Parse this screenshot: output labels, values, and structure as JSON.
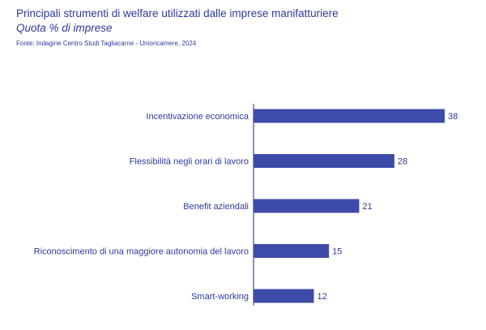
{
  "header": {
    "title": "Principali strumenti di welfare utilizzati dalle imprese manifatturiere",
    "subtitle": "Quota % di imprese",
    "source": "Fonte: Indagine Centro Studi Tagliacarne - Unioncamere, 2024"
  },
  "colors": {
    "bar": "#3f4ba8",
    "text": "#2e3a9a",
    "axis": "#3f4ba8"
  },
  "chart_data": {
    "type": "bar",
    "orientation": "horizontal",
    "title": "Principali strumenti di welfare utilizzati dalle imprese manifatturiere",
    "subtitle": "Quota % di imprese",
    "categories": [
      "Incentivazione economica",
      "Flessibilità negli orari di lavoro",
      "Benefit aziendali",
      "Riconoscimento di una maggiore autonomia del lavoro",
      "Smart-working"
    ],
    "values": [
      38,
      28,
      21,
      15,
      12
    ],
    "xlim": [
      0,
      38
    ],
    "grid": false,
    "data_labels": true
  }
}
